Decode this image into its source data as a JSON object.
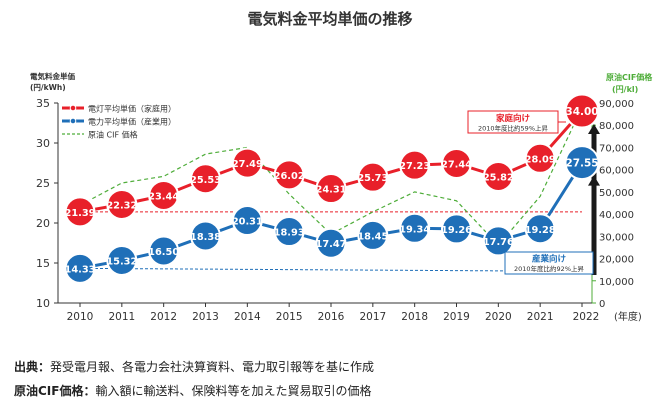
{
  "chart_data": {
    "type": "line",
    "title": "電気料金平均単価の推移",
    "y_left_label_line1": "電気料金単価",
    "y_left_label_line2": "(円/kWh)",
    "y_right_label_line1": "原油CIF価格",
    "y_right_label_line2": "(円/kl)",
    "x_unit": "(年度)",
    "ylim": [
      10,
      35
    ],
    "ylim_right": [
      0,
      90000
    ],
    "y_ticks": [
      10,
      15,
      20,
      25,
      30,
      35
    ],
    "y_right_ticks": [
      "0",
      "10,000",
      "20,000",
      "30,000",
      "40,000",
      "50,000",
      "60,000",
      "70,000",
      "80,000",
      "90,000"
    ],
    "categories": [
      "2010",
      "2011",
      "2012",
      "2013",
      "2014",
      "2015",
      "2016",
      "2017",
      "2018",
      "2019",
      "2020",
      "2021",
      "2022"
    ],
    "series": [
      {
        "name": "電灯平均単価（家庭用）",
        "color": "#e8202a",
        "values": [
          21.39,
          22.32,
          23.44,
          25.53,
          27.49,
          26.02,
          24.31,
          25.73,
          27.23,
          27.44,
          25.82,
          28.09,
          34.0
        ],
        "labels": [
          "21.39",
          "22.32",
          "23.44",
          "25.53",
          "27.49",
          "26.02",
          "24.31",
          "25.73",
          "27.23",
          "27.44",
          "25.82",
          "28.09",
          "34.00"
        ]
      },
      {
        "name": "電力平均単価（産業用）",
        "color": "#1f6fb8",
        "values": [
          14.33,
          15.32,
          16.5,
          18.38,
          20.31,
          18.93,
          17.47,
          18.45,
          19.34,
          19.26,
          17.76,
          19.28,
          27.55
        ],
        "labels": [
          "14.33",
          "15.32",
          "16.50",
          "18.38",
          "20.31",
          "18.93",
          "17.47",
          "18.45",
          "19.34",
          "19.26",
          "17.76",
          "19.28",
          "27.55"
        ]
      },
      {
        "name": "原油 CIF 価格",
        "color": "#4fad3a",
        "axis": "right",
        "values": [
          44000,
          54000,
          57000,
          67000,
          70000,
          49000,
          31000,
          41000,
          50000,
          46000,
          26000,
          48000,
          88000
        ]
      }
    ],
    "annotations": [
      {
        "title": "家庭向け",
        "text": "2010年度比約59%上昇"
      },
      {
        "title": "産業向け",
        "text": "2010年度比約92%上昇"
      }
    ],
    "legend_position": "top-left",
    "grid": false
  },
  "notes": [
    {
      "key": "出典：",
      "text": "発受電月報、各電力会社決算資料、電力取引報等を基に作成"
    },
    {
      "key": "原油CIF価格：",
      "text": "輸入額に輸送料、保険料等を加えた貿易取引の価格"
    }
  ],
  "colors": {
    "red": "#e8202a",
    "blue": "#1f6fb8",
    "green": "#4fad3a",
    "arrow": "#1a1a1a"
  }
}
